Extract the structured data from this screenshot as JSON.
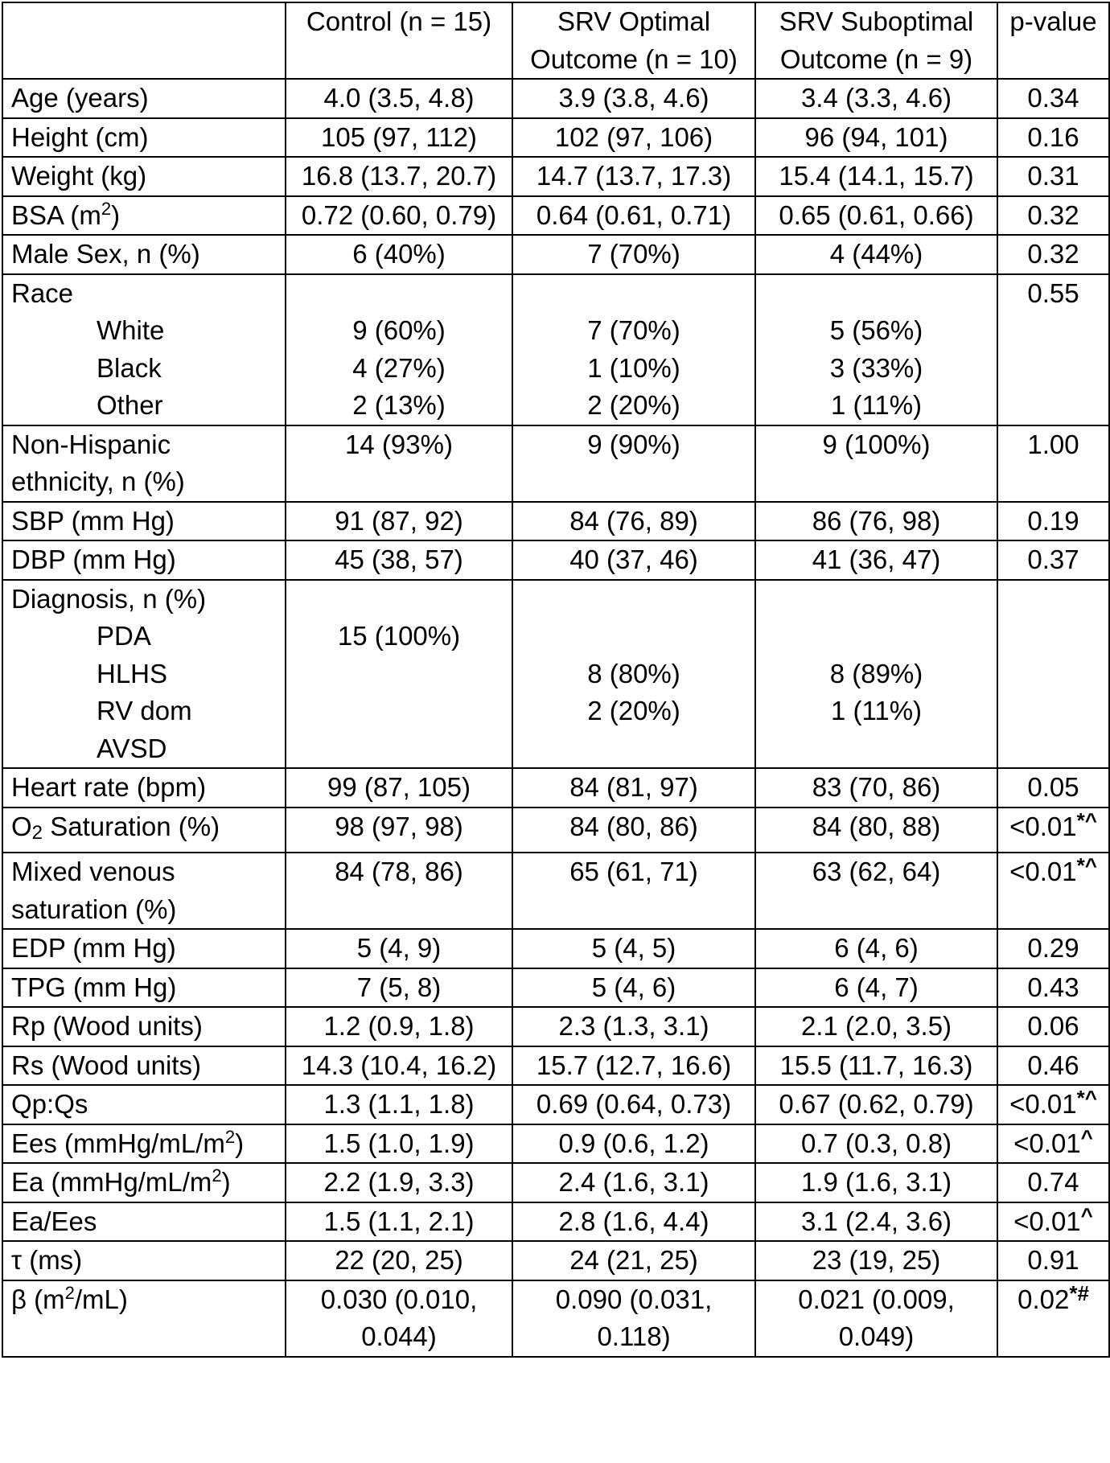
{
  "table": {
    "headers": {
      "blank": "",
      "control": "Control (n = 15)",
      "srv_optimal": "SRV Optimal Outcome (n = 10)",
      "srv_suboptimal": "SRV Suboptimal Outcome (n = 9)",
      "p_value": "p-value"
    },
    "rows": {
      "age": {
        "label": "Age (years)",
        "control": "4.0 (3.5, 4.8)",
        "opt": "3.9 (3.8, 4.6)",
        "sub": "3.4 (3.3, 4.6)",
        "p": "0.34"
      },
      "height": {
        "label": "Height (cm)",
        "control": "105 (97, 112)",
        "opt": "102 (97, 106)",
        "sub": "96 (94, 101)",
        "p": "0.16"
      },
      "weight": {
        "label": "Weight (kg)",
        "control": "16.8 (13.7, 20.7)",
        "opt": "14.7 (13.7, 17.3)",
        "sub": "15.4 (14.1, 15.7)",
        "p": "0.31"
      },
      "bsa": {
        "label_pre": "BSA (m",
        "label_sup": "2",
        "label_post": ")",
        "control": "0.72 (0.60, 0.79)",
        "opt": "0.64 (0.61, 0.71)",
        "sub": "0.65 (0.61, 0.66)",
        "p": "0.32"
      },
      "male": {
        "label": "Male Sex, n (%)",
        "control": "6 (40%)",
        "opt": "7 (70%)",
        "sub": "4 (44%)",
        "p": "0.32"
      },
      "race": {
        "label": "Race",
        "p": "0.55",
        "white": {
          "label": "White",
          "control": "9 (60%)",
          "opt": "7 (70%)",
          "sub": "5 (56%)"
        },
        "black": {
          "label": "Black",
          "control": "4 (27%)",
          "opt": "1 (10%)",
          "sub": "3 (33%)"
        },
        "other": {
          "label": "Other",
          "control": "2 (13%)",
          "opt": "2 (20%)",
          "sub": "1 (11%)"
        }
      },
      "ethnicity": {
        "label": "Non-Hispanic ethnicity, n (%)",
        "control": "14 (93%)",
        "opt": "9 (90%)",
        "sub": "9 (100%)",
        "p": "1.00"
      },
      "sbp": {
        "label": "SBP (mm Hg)",
        "control": "91 (87, 92)",
        "opt": "84 (76, 89)",
        "sub": "86 (76, 98)",
        "p": "0.19"
      },
      "dbp": {
        "label": "DBP (mm Hg)",
        "control": "45 (38, 57)",
        "opt": "40 (37, 46)",
        "sub": "41 (36, 47)",
        "p": "0.37"
      },
      "diagnosis": {
        "label": "Diagnosis, n (%)",
        "pda": {
          "label": "PDA",
          "control": "15 (100%)",
          "opt": "",
          "sub": ""
        },
        "hlhs": {
          "label": "HLHS",
          "control": "",
          "opt": "8 (80%)",
          "sub": "8 (89%)"
        },
        "rvdom": {
          "label": "RV dom",
          "control": "",
          "opt": "2 (20%)",
          "sub": "1 (11%)"
        },
        "avsd": {
          "label": "AVSD",
          "control": "",
          "opt": "",
          "sub": ""
        }
      },
      "hr": {
        "label": "Heart rate (bpm)",
        "control": "99 (87, 105)",
        "opt": "84 (81, 97)",
        "sub": "83 (70, 86)",
        "p": "0.05"
      },
      "o2": {
        "label_pre": "O",
        "label_sub": "2",
        "label_post": " Saturation (%)",
        "control": "98 (97, 98)",
        "opt": "84 (80, 86)",
        "sub": "84 (80, 88)",
        "p_value": "<0.01",
        "p_mark": "*^"
      },
      "mixed": {
        "label": "Mixed venous saturation (%)",
        "control": "84 (78, 86)",
        "opt": "65 (61, 71)",
        "sub": "63 (62, 64)",
        "p_value": "<0.01",
        "p_mark": "*^"
      },
      "edp": {
        "label": "EDP (mm Hg)",
        "control": "5 (4, 9)",
        "opt": "5 (4, 5)",
        "sub": "6 (4, 6)",
        "p": "0.29"
      },
      "tpg": {
        "label": "TPG (mm Hg)",
        "control": "7 (5, 8)",
        "opt": "5 (4, 6)",
        "sub": "6 (4, 7)",
        "p": "0.43"
      },
      "rp": {
        "label": "Rp (Wood units)",
        "control": "1.2 (0.9, 1.8)",
        "opt": "2.3 (1.3, 3.1)",
        "sub": "2.1 (2.0, 3.5)",
        "p": "0.06"
      },
      "rs": {
        "label": "Rs (Wood units)",
        "control": "14.3 (10.4, 16.2)",
        "opt": "15.7 (12.7, 16.6)",
        "sub": "15.5 (11.7, 16.3)",
        "p": "0.46"
      },
      "qpqs": {
        "label": "Qp:Qs",
        "control": "1.3 (1.1, 1.8)",
        "opt": "0.69 (0.64, 0.73)",
        "sub": "0.67 (0.62, 0.79)",
        "p_value": "<0.01",
        "p_mark": "*^"
      },
      "ees": {
        "label_pre": "Ees (mmHg/mL/m",
        "label_sup": "2",
        "label_post": ")",
        "control": "1.5 (1.0, 1.9)",
        "opt": "0.9 (0.6, 1.2)",
        "sub": "0.7 (0.3, 0.8)",
        "p_value": "<0.01",
        "p_mark": "^"
      },
      "ea": {
        "label_pre": "Ea (mmHg/mL/m",
        "label_sup": "2",
        "label_post": ")",
        "control": "2.2 (1.9, 3.3)",
        "opt": "2.4 (1.6, 3.1)",
        "sub": "1.9 (1.6, 3.1)",
        "p": "0.74"
      },
      "eaees": {
        "label": "Ea/Ees",
        "control": "1.5 (1.1, 2.1)",
        "opt": "2.8 (1.6, 4.4)",
        "sub": "3.1 (2.4, 3.6)",
        "p_value": "<0.01",
        "p_mark": "^"
      },
      "tau": {
        "label": "τ (ms)",
        "control": "22 (20, 25)",
        "opt": "24 (21, 25)",
        "sub": "23 (19, 25)",
        "p": "0.91"
      },
      "beta": {
        "label_pre": "β (m",
        "label_sup": "2",
        "label_post": "/mL)",
        "control": "0.030 (0.010, 0.044)",
        "opt": "0.090 (0.031, 0.118)",
        "sub": "0.021 (0.009, 0.049)",
        "p_value": "0.02",
        "p_mark": "*#"
      }
    }
  }
}
